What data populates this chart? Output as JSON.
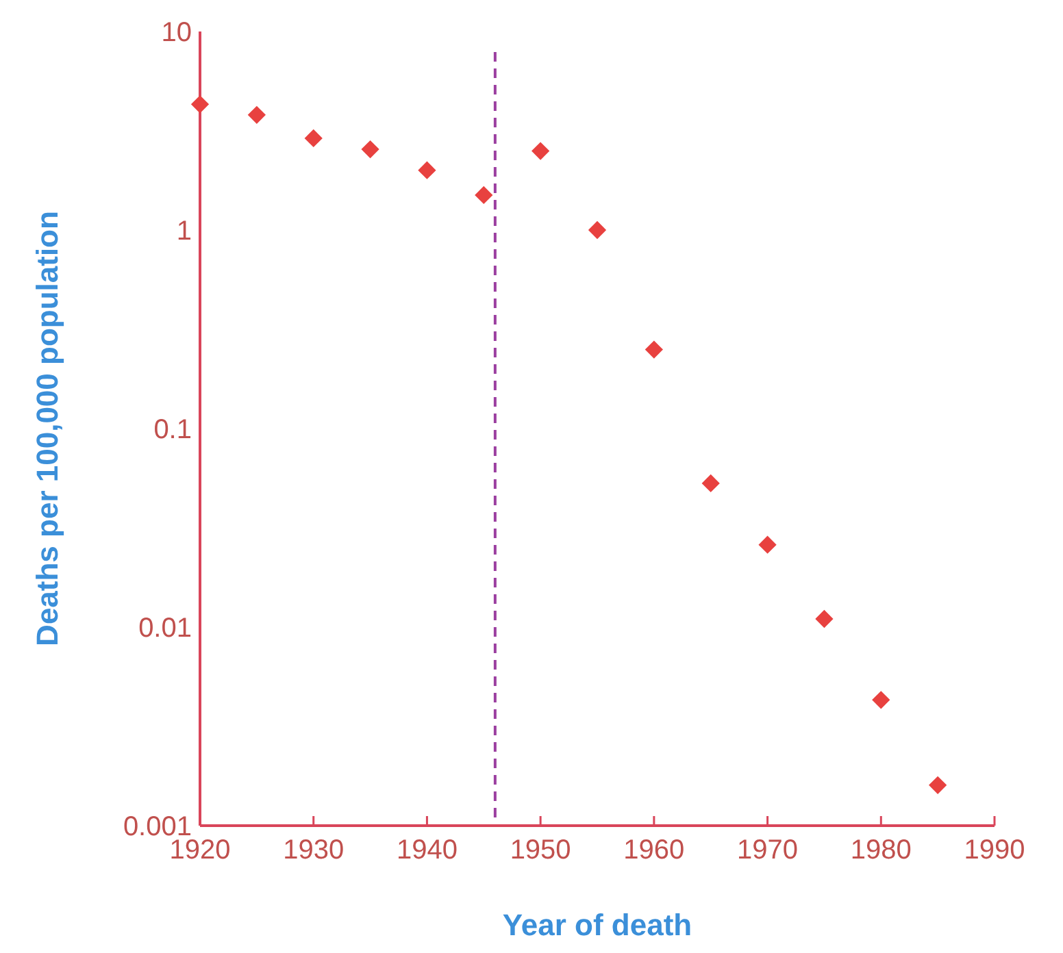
{
  "chart_data": {
    "type": "scatter",
    "xlabel": "Year of death",
    "ylabel": "Deaths per 100,000 population",
    "log": "y",
    "marker": "diamond",
    "grid": false,
    "x": [
      1920,
      1925,
      1930,
      1935,
      1940,
      1945,
      1950,
      1955,
      1960,
      1965,
      1970,
      1975,
      1980,
      1985
    ],
    "series": [
      {
        "color": "#e8413f",
        "values": [
          4.3,
          3.8,
          2.9,
          2.55,
          2.0,
          1.5,
          2.5,
          1.0,
          0.25,
          0.053,
          0.026,
          0.011,
          0.0043,
          0.0016
        ]
      }
    ],
    "xlim": [
      1920,
      1990
    ],
    "xticks": [
      1920,
      1930,
      1940,
      1950,
      1960,
      1970,
      1980,
      1990
    ],
    "ylim": [
      0.001,
      10
    ],
    "yticks": [
      0.001,
      0.01,
      0.1,
      1,
      10
    ],
    "ref_lines": [
      {
        "axis": "x",
        "value": 1946,
        "color": "#9b3fa0",
        "line_style": "dashed"
      }
    ]
  }
}
